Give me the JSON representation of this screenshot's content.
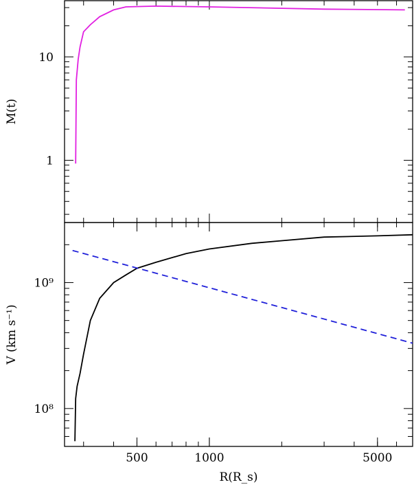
{
  "chart_data": [
    {
      "type": "line",
      "panel": "top",
      "xscale": "log",
      "yscale": "log",
      "xlim": [
        250,
        7000
      ],
      "ylim": [
        0.25,
        35
      ],
      "xlabel": "",
      "ylabel": "M(t)",
      "yticks": [
        {
          "value": 1,
          "label": "1"
        },
        {
          "value": 10,
          "label": "10"
        }
      ],
      "series": [
        {
          "color": "#e11fe1",
          "style": "solid",
          "x": [
            278,
            280,
            285,
            290,
            300,
            320,
            350,
            400,
            450,
            600,
            1000,
            3000,
            6500
          ],
          "y": [
            0.93,
            6.0,
            9.5,
            12.5,
            17.5,
            20.5,
            24.5,
            28.5,
            30.5,
            31.0,
            30.5,
            29.0,
            28.5
          ]
        }
      ]
    },
    {
      "type": "line",
      "panel": "bottom",
      "xscale": "log",
      "yscale": "log",
      "xlim": [
        250,
        7000
      ],
      "ylim": [
        50000000,
        3000000000
      ],
      "xlabel": "R(R_s)",
      "ylabel": "V (km s⁻¹)",
      "xticks": [
        {
          "value": 500,
          "label": "500"
        },
        {
          "value": 1000,
          "label": "1000"
        },
        {
          "value": 5000,
          "label": "5000"
        }
      ],
      "yticks": [
        {
          "value": 100000000,
          "label": "10⁸"
        },
        {
          "value": 1000000000,
          "label": "10⁹"
        }
      ],
      "series": [
        {
          "color": "#000000",
          "style": "solid",
          "x": [
            276,
            278,
            282,
            290,
            300,
            320,
            350,
            400,
            450,
            500,
            600,
            800,
            1000,
            1500,
            2000,
            3000,
            5000,
            7000
          ],
          "y": [
            55000000,
            120000000,
            150000000,
            190000000,
            270000000,
            500000000,
            750000000,
            1000000000,
            1150000000,
            1300000000,
            1450000000,
            1700000000,
            1850000000,
            2050000000,
            2150000000,
            2300000000,
            2350000000,
            2400000000
          ]
        },
        {
          "color": "#1f1fd9",
          "style": "dashed",
          "x": [
            270,
            7000
          ],
          "y": [
            1800000000,
            330000000
          ]
        }
      ]
    }
  ]
}
